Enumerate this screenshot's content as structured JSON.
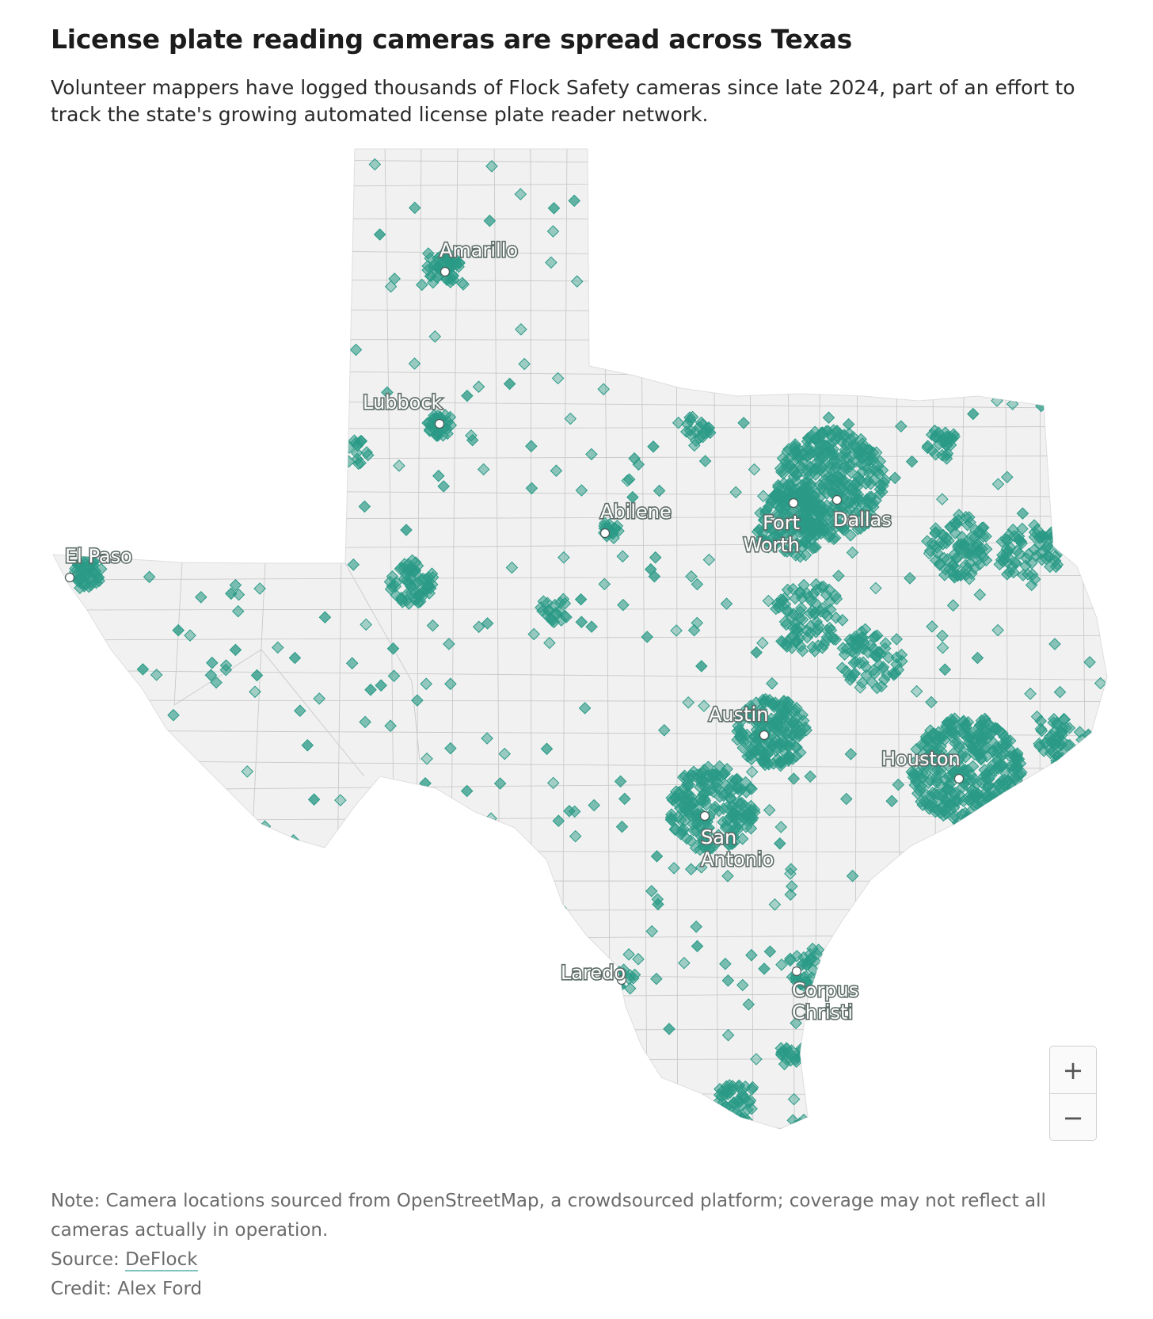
{
  "title": "License plate reading cameras are spread across Texas",
  "subtitle": "Volunteer mappers have logged thousands of Flock Safety cameras since late 2024, part of an effort to track the state's growing automated license plate reader network.",
  "map": {
    "marker_color": "#2a9a86",
    "land_color": "#f1f1f1",
    "cities": [
      {
        "name": "Amarillo",
        "lines": [
          "Amarillo"
        ]
      },
      {
        "name": "Lubbock",
        "lines": [
          "Lubbock"
        ]
      },
      {
        "name": "Abilene",
        "lines": [
          "Abilene"
        ]
      },
      {
        "name": "El Paso",
        "lines": [
          "El Paso"
        ]
      },
      {
        "name": "Fort Worth",
        "lines": [
          "Fort",
          "Worth"
        ]
      },
      {
        "name": "Dallas",
        "lines": [
          "Dallas"
        ]
      },
      {
        "name": "Austin",
        "lines": [
          "Austin"
        ]
      },
      {
        "name": "Houston",
        "lines": [
          "Houston"
        ]
      },
      {
        "name": "San Antonio",
        "lines": [
          "San",
          "Antonio"
        ]
      },
      {
        "name": "Laredo",
        "lines": [
          "Laredo"
        ]
      },
      {
        "name": "Corpus Christi",
        "lines": [
          "Corpus",
          "Christi"
        ]
      }
    ]
  },
  "zoom": {
    "in_label": "+",
    "out_label": "−"
  },
  "footer": {
    "note": "Note: Camera locations sourced from OpenStreetMap, a crowdsourced platform; coverage may not reflect all cameras actually in operation.",
    "source_prefix": "Source: ",
    "source_link": "DeFlock",
    "credit": "Credit: Alex Ford"
  }
}
